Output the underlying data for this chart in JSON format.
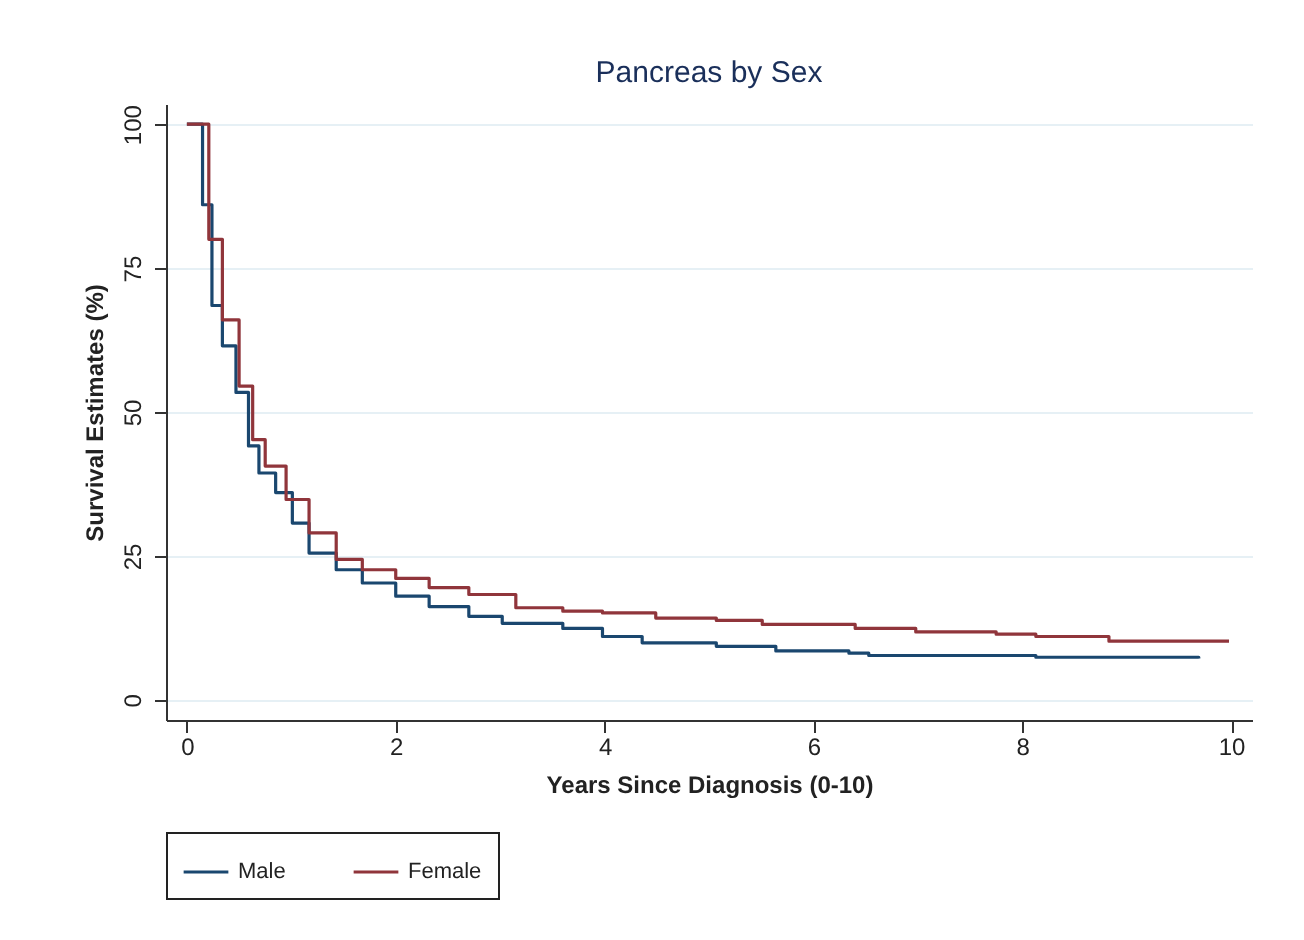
{
  "chart_data": {
    "type": "step",
    "title": "Pancreas by Sex",
    "xlabel": "Years Since Diagnosis (0-10)",
    "ylabel": "Survival Estimates (%)",
    "xlim": [
      -0.2,
      10.2
    ],
    "xticks": [
      0,
      2,
      4,
      6,
      8,
      10
    ],
    "ylim": [
      -3.5,
      103.5
    ],
    "yticks": [
      0,
      25,
      50,
      75,
      100
    ],
    "grid": "y",
    "legend": "bottom",
    "series": [
      {
        "name": "Male",
        "color": "#1a476f",
        "x": [
          0,
          0.08,
          0.15,
          0.24,
          0.34,
          0.47,
          0.59,
          0.69,
          0.85,
          1.01,
          1.17,
          1.43,
          1.68,
          2.0,
          2.32,
          2.7,
          3.02,
          3.6,
          3.98,
          4.36,
          5.07,
          5.64,
          6.34,
          6.53,
          8.13,
          9.69
        ],
        "values": [
          100,
          100,
          86,
          68.5,
          61.5,
          53.4,
          44.1,
          39.4,
          36,
          30.7,
          25.5,
          22.6,
          20.3,
          18,
          16.2,
          14.5,
          13.3,
          12.4,
          11,
          9.9,
          9.3,
          8.5,
          8.1,
          7.7,
          7.4,
          7.2
        ]
      },
      {
        "name": "Female",
        "color": "#90353b",
        "x": [
          0,
          0.08,
          0.21,
          0.34,
          0.5,
          0.63,
          0.75,
          0.95,
          1.17,
          1.43,
          1.68,
          2.0,
          2.32,
          2.7,
          3.15,
          3.6,
          3.98,
          4.49,
          5.07,
          5.51,
          6.4,
          6.98,
          7.75,
          8.13,
          8.83,
          9.98
        ],
        "values": [
          100,
          100,
          80,
          66,
          54.5,
          45.2,
          40.6,
          34.8,
          29,
          24.4,
          22.6,
          21.1,
          19.5,
          18.3,
          16,
          15.4,
          15.1,
          14.2,
          13.8,
          13.1,
          12.4,
          11.8,
          11.4,
          11,
          10.2,
          10.2
        ]
      }
    ]
  }
}
